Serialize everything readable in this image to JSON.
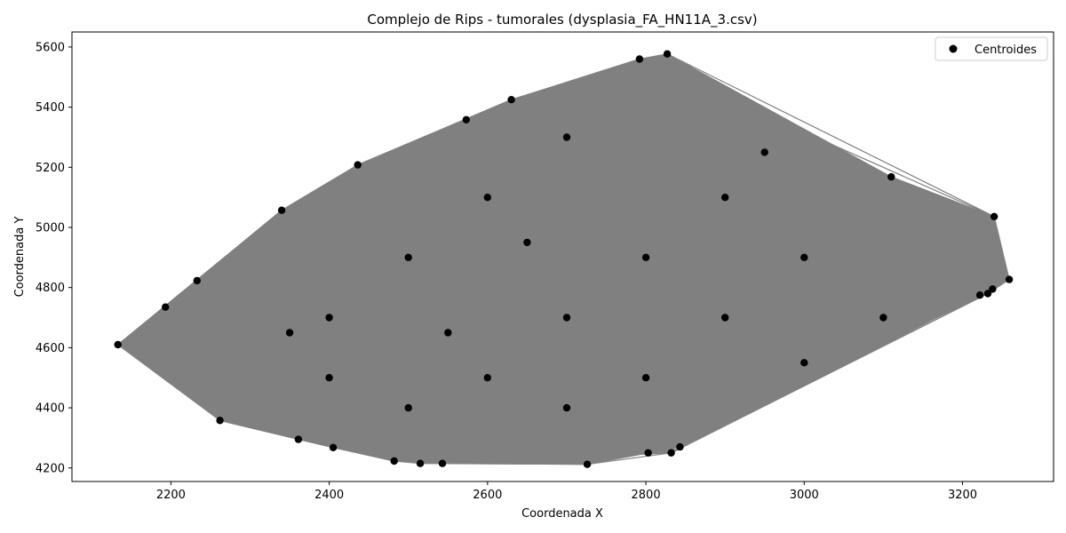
{
  "chart_data": {
    "type": "scatter",
    "title": "Complejo de Rips - tumorales (dysplasia_FA_HN11A_3.csv)",
    "xlabel": "Coordenada X",
    "ylabel": "Coordenada Y",
    "xlim": [
      2075,
      3315
    ],
    "ylim": [
      4155,
      5650
    ],
    "xticks": [
      2200,
      2400,
      2600,
      2800,
      3000,
      3200
    ],
    "yticks": [
      4200,
      4400,
      4600,
      4800,
      5000,
      5200,
      5400,
      5600
    ],
    "grid": false,
    "legend": {
      "placement": "top-right",
      "entries": [
        "Centroides"
      ]
    },
    "colors": {
      "points": "#000000",
      "edges": "#808080"
    },
    "series": [
      {
        "name": "Centroides",
        "points": [
          [
            2133,
            4610
          ],
          [
            2193,
            4735
          ],
          [
            2233,
            4823
          ],
          [
            2262,
            4358
          ],
          [
            2340,
            5057
          ],
          [
            2361,
            4295
          ],
          [
            2405,
            4268
          ],
          [
            2436,
            5208
          ],
          [
            2482,
            4223
          ],
          [
            2515,
            4215
          ],
          [
            2543,
            4215
          ],
          [
            2573,
            5358
          ],
          [
            2630,
            5425
          ],
          [
            2726,
            4212
          ],
          [
            2792,
            5560
          ],
          [
            2803,
            4250
          ],
          [
            2827,
            5577
          ],
          [
            2832,
            4250
          ],
          [
            2843,
            4270
          ],
          [
            3110,
            5168
          ],
          [
            3222,
            4775
          ],
          [
            3232,
            4780
          ],
          [
            3238,
            4795
          ],
          [
            3240,
            5036
          ],
          [
            3259,
            4827
          ],
          [
            2400,
            4700
          ],
          [
            2500,
            4900
          ],
          [
            2600,
            5100
          ],
          [
            2700,
            5300
          ],
          [
            2600,
            4500
          ],
          [
            2700,
            4700
          ],
          [
            2800,
            4900
          ],
          [
            2900,
            5100
          ],
          [
            2800,
            4500
          ],
          [
            2900,
            4700
          ],
          [
            3000,
            4900
          ],
          [
            3000,
            4550
          ],
          [
            2500,
            4400
          ],
          [
            2400,
            4500
          ],
          [
            2700,
            4400
          ],
          [
            2650,
            4950
          ],
          [
            2950,
            5250
          ],
          [
            3100,
            4700
          ],
          [
            2350,
            4650
          ],
          [
            2550,
            4650
          ]
        ]
      }
    ]
  }
}
